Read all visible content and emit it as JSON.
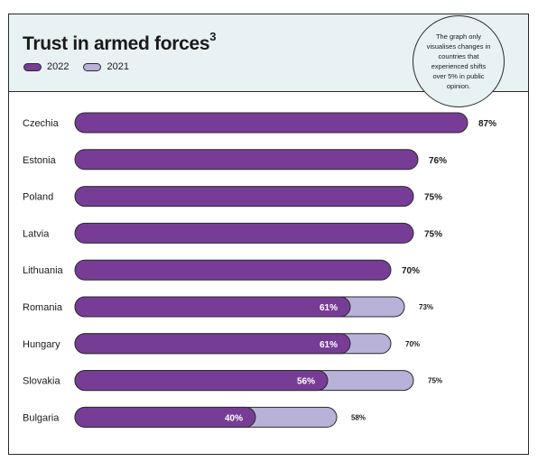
{
  "title": "Trust in armed forces",
  "footnote_mark": "3",
  "note": "The graph only visualises changes in countries that experienced shifts over 5% in public opinion.",
  "colors": {
    "c2022": "#773d96",
    "c2021": "#b8b2d8",
    "header_bg": "#e8f1f3",
    "border": "#2a2a2a"
  },
  "chart_data": {
    "type": "bar",
    "orientation": "horizontal",
    "title": "Trust in armed forces",
    "unit": "%",
    "legend_position": "top-left",
    "categories": [
      "Czechia",
      "Estonia",
      "Poland",
      "Latvia",
      "Lithuania",
      "Romania",
      "Hungary",
      "Slovakia",
      "Bulgaria"
    ],
    "series": [
      {
        "name": "2022",
        "values": [
          87,
          76,
          75,
          75,
          70,
          61,
          61,
          56,
          40
        ]
      },
      {
        "name": "2021",
        "values": [
          null,
          null,
          null,
          null,
          null,
          73,
          70,
          75,
          58
        ]
      }
    ],
    "xlim": [
      0,
      100
    ]
  }
}
